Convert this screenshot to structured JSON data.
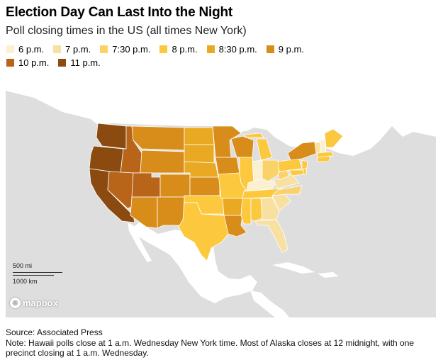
{
  "header": {
    "title": "Election Day Can Last Into the Night",
    "subtitle": "Poll closing times in the US (all times New York)"
  },
  "legend": [
    {
      "label": "6 p.m.",
      "color": "#fbf0cf"
    },
    {
      "label": "7 p.m.",
      "color": "#f8e0a0"
    },
    {
      "label": "7:30 p.m.",
      "color": "#fad26a"
    },
    {
      "label": "8 p.m.",
      "color": "#fbc83e"
    },
    {
      "label": "8:30 p.m.",
      "color": "#e9a923"
    },
    {
      "label": "9 p.m.",
      "color": "#d88d1a"
    },
    {
      "label": "10 p.m.",
      "color": "#b8651a"
    },
    {
      "label": "11 p.m.",
      "color": "#8a4a10"
    }
  ],
  "map": {
    "scale_miles": "500 mi",
    "scale_km": "1000 km",
    "attribution": "mapbox"
  },
  "footer": {
    "source": "Source: Associated Press",
    "note": "Note: Hawaii polls close at 1 a.m. Wednesday New York time. Most of Alaska closes at 12 midnight, with one precinct closing at 1 a.m. Wednesday."
  }
}
